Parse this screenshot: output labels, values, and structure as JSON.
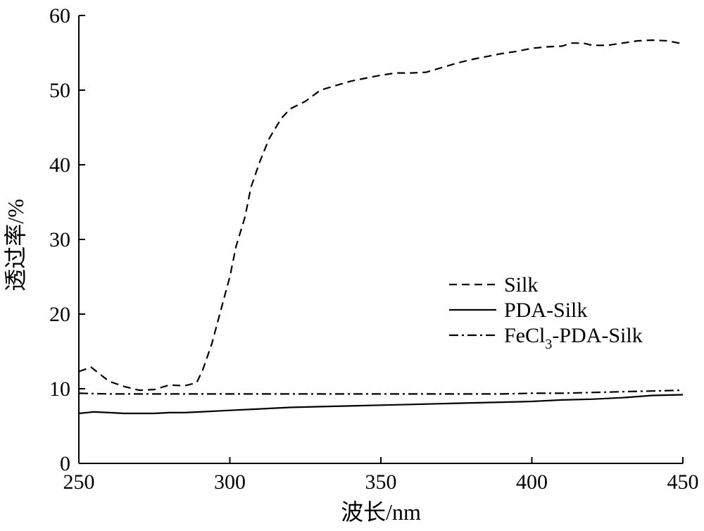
{
  "chart_data": {
    "type": "line",
    "title": "",
    "xlabel": "波长/nm",
    "ylabel": "透过率/%",
    "xlim": [
      250,
      450
    ],
    "ylim": [
      0,
      60
    ],
    "xticks": [
      250,
      300,
      350,
      400,
      450
    ],
    "yticks": [
      0,
      10,
      20,
      30,
      40,
      50,
      60
    ],
    "grid": false,
    "legend_position": "right",
    "series": [
      {
        "name": "Silk",
        "style": "dashed",
        "color": "#000000",
        "x": [
          250,
          254,
          260,
          265,
          270,
          275,
          280,
          285,
          289,
          291,
          294,
          297,
          300,
          302,
          305,
          307,
          310,
          313,
          317,
          320,
          325,
          330,
          335,
          340,
          345,
          350,
          355,
          360,
          365,
          370,
          375,
          380,
          385,
          390,
          395,
          400,
          405,
          410,
          413,
          417,
          420,
          425,
          430,
          435,
          440,
          445,
          450
        ],
        "y": [
          12.3,
          12.9,
          11.0,
          10.3,
          9.8,
          9.9,
          10.5,
          10.4,
          10.8,
          12.5,
          16.0,
          20.5,
          25.0,
          29.0,
          33.0,
          37.0,
          40.5,
          43.5,
          46.2,
          47.5,
          48.5,
          50.0,
          50.6,
          51.2,
          51.6,
          52.0,
          52.3,
          52.3,
          52.4,
          53.0,
          53.6,
          54.1,
          54.5,
          54.9,
          55.2,
          55.6,
          55.8,
          55.9,
          56.3,
          56.3,
          56.0,
          56.0,
          56.3,
          56.6,
          56.7,
          56.6,
          56.2
        ]
      },
      {
        "name": "PDA-Silk",
        "style": "solid",
        "color": "#000000",
        "x": [
          250,
          255,
          260,
          265,
          270,
          275,
          280,
          285,
          290,
          295,
          300,
          310,
          320,
          330,
          340,
          350,
          360,
          370,
          380,
          390,
          400,
          410,
          420,
          430,
          440,
          450
        ],
        "y": [
          6.7,
          6.9,
          6.8,
          6.7,
          6.7,
          6.7,
          6.8,
          6.8,
          6.9,
          7.0,
          7.1,
          7.3,
          7.5,
          7.6,
          7.7,
          7.8,
          7.9,
          8.0,
          8.1,
          8.2,
          8.3,
          8.5,
          8.6,
          8.8,
          9.1,
          9.2
        ]
      },
      {
        "name": "FeCl3-PDA-Silk",
        "style": "dashdot",
        "color": "#000000",
        "x": [
          250,
          260,
          270,
          280,
          290,
          300,
          310,
          320,
          330,
          340,
          350,
          360,
          370,
          380,
          390,
          400,
          410,
          420,
          430,
          440,
          450
        ],
        "y": [
          9.4,
          9.3,
          9.3,
          9.3,
          9.3,
          9.3,
          9.3,
          9.3,
          9.3,
          9.3,
          9.3,
          9.3,
          9.3,
          9.3,
          9.3,
          9.4,
          9.4,
          9.5,
          9.6,
          9.7,
          9.8
        ]
      }
    ],
    "legend": {
      "entries": [
        {
          "series": 0,
          "label": "Silk",
          "subscript": "",
          "label_tail": ""
        },
        {
          "series": 1,
          "label": "PDA-Silk",
          "subscript": "",
          "label_tail": ""
        },
        {
          "series": 2,
          "label": "FeCl",
          "subscript": "3",
          "label_tail": "-PDA-Silk"
        }
      ]
    }
  }
}
